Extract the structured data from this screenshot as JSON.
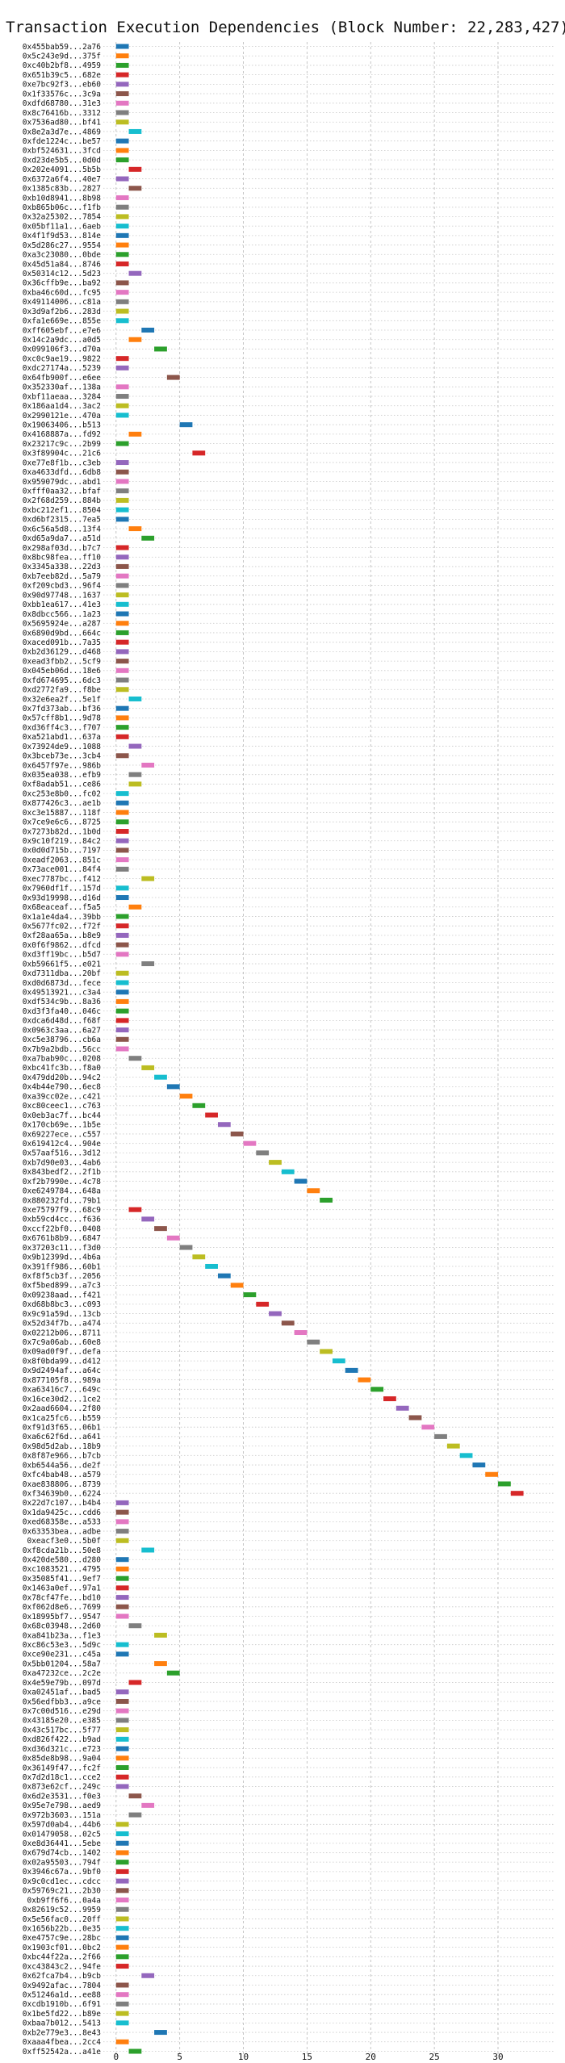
{
  "chart_data": {
    "type": "bar",
    "orientation": "horizontal",
    "title": "Transaction Execution Dependencies (Block Number: 22,283,427)",
    "xlabel": "",
    "ylabel": "",
    "xlim": [
      -1,
      34.5
    ],
    "xticks": [
      0,
      5,
      10,
      15,
      20,
      25,
      30
    ],
    "grid": true,
    "legend": "none",
    "palette": [
      "#1f77b4",
      "#ff7f0e",
      "#2ca02c",
      "#d62728",
      "#9467bd",
      "#8c564b",
      "#e377c2",
      "#7f7f7f",
      "#bcbd22",
      "#17becf"
    ],
    "transactions": [
      {
        "label": "0x455bab59...2a76",
        "x": 0
      },
      {
        "label": "0x5c243e9d...375f",
        "x": 0
      },
      {
        "label": "0xc40b2bf8...4959",
        "x": 0
      },
      {
        "label": "0x651b39c5...682e",
        "x": 0
      },
      {
        "label": "0xe7bc92f3...eb60",
        "x": 0
      },
      {
        "label": "0x1f33576c...3c9a",
        "x": 0
      },
      {
        "label": "0xdfd68780...31e3",
        "x": 0
      },
      {
        "label": "0x8c76416b...3312",
        "x": 0
      },
      {
        "label": "0x7536ad80...bf41",
        "x": 0
      },
      {
        "label": "0x8e2a3d7e...4869",
        "x": 1
      },
      {
        "label": "0xfde1224c...be57",
        "x": 0
      },
      {
        "label": "0xbf524631...3fcd",
        "x": 0
      },
      {
        "label": "0xd23de5b5...0d0d",
        "x": 0
      },
      {
        "label": "0x202e4091...5b5b",
        "x": 1
      },
      {
        "label": "0x6372a6f4...40e7",
        "x": 0
      },
      {
        "label": "0x1385c83b...2827",
        "x": 1
      },
      {
        "label": "0xb10d8941...8b98",
        "x": 0
      },
      {
        "label": "0xb865b06c...f1fb",
        "x": 0
      },
      {
        "label": "0x32a25302...7854",
        "x": 0
      },
      {
        "label": "0x05bf11a1...6aeb",
        "x": 0
      },
      {
        "label": "0x4f1f9d53...814e",
        "x": 0
      },
      {
        "label": "0x5d286c27...9554",
        "x": 0
      },
      {
        "label": "0xa3c23080...0bde",
        "x": 0
      },
      {
        "label": "0x45d51a84...8746",
        "x": 0
      },
      {
        "label": "0x50314c12...5d23",
        "x": 1
      },
      {
        "label": "0x36cffb9e...ba92",
        "x": 0
      },
      {
        "label": "0xba46c60d...fc95",
        "x": 0
      },
      {
        "label": "0x49114006...c81a",
        "x": 0
      },
      {
        "label": "0x3d9af2b6...283d",
        "x": 0
      },
      {
        "label": "0xfa1e669e...855e",
        "x": 0
      },
      {
        "label": "0xff605ebf...e7e6",
        "x": 2
      },
      {
        "label": "0x14c2a9dc...a0d5",
        "x": 1
      },
      {
        "label": "0x099106f3...d70a",
        "x": 3
      },
      {
        "label": "0xc0c9ae19...9822",
        "x": 0
      },
      {
        "label": "0xdc27174a...5239",
        "x": 0
      },
      {
        "label": "0x64fb900f...e6ee",
        "x": 4
      },
      {
        "label": "0x352330af...138a",
        "x": 0
      },
      {
        "label": "0xbf11aeaa...3284",
        "x": 0
      },
      {
        "label": "0x186aa1d4...3ac2",
        "x": 0
      },
      {
        "label": "0x2990121e...470a",
        "x": 0
      },
      {
        "label": "0x19063406...b513",
        "x": 5
      },
      {
        "label": "0x4168887a...fd92",
        "x": 1
      },
      {
        "label": "0x23217c9c...2b99",
        "x": 0
      },
      {
        "label": "0x3f89904c...21c6",
        "x": 6
      },
      {
        "label": "0xe77e8f1b...c3eb",
        "x": 0
      },
      {
        "label": "0xa4633dfd...6db8",
        "x": 0
      },
      {
        "label": "0x959079dc...abd1",
        "x": 0
      },
      {
        "label": "0xfff0aa32...bfaf",
        "x": 0
      },
      {
        "label": "0x2f68d259...884b",
        "x": 0
      },
      {
        "label": "0xbc212ef1...8504",
        "x": 0
      },
      {
        "label": "0xd6bf2315...7ea5",
        "x": 0
      },
      {
        "label": "0x6c56a5d8...13f4",
        "x": 1
      },
      {
        "label": "0xd65a9da7...a51d",
        "x": 2
      },
      {
        "label": "0x298af03d...b7c7",
        "x": 0
      },
      {
        "label": "0x8bc98fea...ff10",
        "x": 0
      },
      {
        "label": "0x3345a338...22d3",
        "x": 0
      },
      {
        "label": "0xb7eeb82d...5a79",
        "x": 0
      },
      {
        "label": "0xf209cbd3...96f4",
        "x": 0
      },
      {
        "label": "0x90d97748...1637",
        "x": 0
      },
      {
        "label": "0xbb1ea617...41e3",
        "x": 0
      },
      {
        "label": "0x8dbcc566...1a23",
        "x": 0
      },
      {
        "label": "0x5695924e...a287",
        "x": 0
      },
      {
        "label": "0x6890d9bd...664c",
        "x": 0
      },
      {
        "label": "0xaced091b...7a35",
        "x": 0
      },
      {
        "label": "0xb2d36129...d468",
        "x": 0
      },
      {
        "label": "0xead3fbb2...5cf9",
        "x": 0
      },
      {
        "label": "0x045eb06d...18e6",
        "x": 0
      },
      {
        "label": "0xfd674695...6dc3",
        "x": 0
      },
      {
        "label": "0xd2772fa9...f8be",
        "x": 0
      },
      {
        "label": "0x32e6ea2f...5e1f",
        "x": 1
      },
      {
        "label": "0x7fd373ab...bf36",
        "x": 0
      },
      {
        "label": "0x57cff8b1...9d78",
        "x": 0
      },
      {
        "label": "0xd36ff4c3...f707",
        "x": 0
      },
      {
        "label": "0xa521abd1...637a",
        "x": 0
      },
      {
        "label": "0x73924de9...1088",
        "x": 1
      },
      {
        "label": "0x3bceb73e...3cb4",
        "x": 0
      },
      {
        "label": "0x6457f97e...986b",
        "x": 2
      },
      {
        "label": "0x035ea038...efb9",
        "x": 1
      },
      {
        "label": "0xf8adab51...ce86",
        "x": 1
      },
      {
        "label": "0xc253e8b0...fc02",
        "x": 0
      },
      {
        "label": "0x877426c3...ae1b",
        "x": 0
      },
      {
        "label": "0xc3e15887...118f",
        "x": 0
      },
      {
        "label": "0x7ce9e6c6...8725",
        "x": 0
      },
      {
        "label": "0x7273b82d...1b0d",
        "x": 0
      },
      {
        "label": "0x9c10f219...84c2",
        "x": 0
      },
      {
        "label": "0x0d0d715b...7197",
        "x": 0
      },
      {
        "label": "0xeadf2063...851c",
        "x": 0
      },
      {
        "label": "0x73ace001...84f4",
        "x": 0
      },
      {
        "label": "0xec7787bc...f412",
        "x": 2
      },
      {
        "label": "0x7960df1f...157d",
        "x": 0
      },
      {
        "label": "0x93d19998...d16d",
        "x": 0
      },
      {
        "label": "0x68eaceaf...f5a5",
        "x": 1
      },
      {
        "label": "0x1a1e4da4...39bb",
        "x": 0
      },
      {
        "label": "0x5677fc02...f72f",
        "x": 0
      },
      {
        "label": "0xf28aa65a...b8e9",
        "x": 0
      },
      {
        "label": "0x0f6f9862...dfcd",
        "x": 0
      },
      {
        "label": "0xd3ff19bc...b5d7",
        "x": 0
      },
      {
        "label": "0xb59661f5...e021",
        "x": 2
      },
      {
        "label": "0xd7311dba...20bf",
        "x": 0
      },
      {
        "label": "0xd0d6873d...fece",
        "x": 0
      },
      {
        "label": "0x49513921...c3a4",
        "x": 0
      },
      {
        "label": "0xdf534c9b...8a36",
        "x": 0
      },
      {
        "label": "0xd3f3fa40...046c",
        "x": 0
      },
      {
        "label": "0xdca6d48d...f68f",
        "x": 0
      },
      {
        "label": "0x0963c3aa...6a27",
        "x": 0
      },
      {
        "label": "0xc5e38796...cb6a",
        "x": 0
      },
      {
        "label": "0x7b9a2bdb...56cc",
        "x": 0
      },
      {
        "label": "0xa7bab90c...0208",
        "x": 1
      },
      {
        "label": "0xbc41fc3b...f8a0",
        "x": 2
      },
      {
        "label": "0x479dd20b...94c2",
        "x": 3
      },
      {
        "label": "0x4b44e790...6ec8",
        "x": 4
      },
      {
        "label": "0xa39cc02e...c421",
        "x": 5
      },
      {
        "label": "0xc80ceec1...c763",
        "x": 6
      },
      {
        "label": "0x0eb3ac7f...bc44",
        "x": 7
      },
      {
        "label": "0x170cb69e...1b5e",
        "x": 8
      },
      {
        "label": "0x69227ece...c557",
        "x": 9
      },
      {
        "label": "0x619412c4...904e",
        "x": 10
      },
      {
        "label": "0x57aaf516...3d12",
        "x": 11
      },
      {
        "label": "0xb7d90e03...4ab6",
        "x": 12
      },
      {
        "label": "0x843bedf2...2f1b",
        "x": 13
      },
      {
        "label": "0xf2b7990e...4c78",
        "x": 14
      },
      {
        "label": "0xe6249784...648a",
        "x": 15
      },
      {
        "label": "0x880232fd...79b1",
        "x": 16
      },
      {
        "label": "0xe75797f9...68c9",
        "x": 1
      },
      {
        "label": "0xb59cd4cc...f636",
        "x": 2
      },
      {
        "label": "0xccf22bf0...0408",
        "x": 3
      },
      {
        "label": "0x6761b8b9...6847",
        "x": 4
      },
      {
        "label": "0x37203c11...f3d0",
        "x": 5
      },
      {
        "label": "0x9b12399d...4b6a",
        "x": 6
      },
      {
        "label": "0x391ff986...60b1",
        "x": 7
      },
      {
        "label": "0xf8f5cb3f...2056",
        "x": 8
      },
      {
        "label": "0xf5bed899...a7c3",
        "x": 9
      },
      {
        "label": "0x09238aad...f421",
        "x": 10
      },
      {
        "label": "0xd68b8bc3...c093",
        "x": 11
      },
      {
        "label": "0x9c91a59d...13cb",
        "x": 12
      },
      {
        "label": "0x52d34f7b...a474",
        "x": 13
      },
      {
        "label": "0x02212b06...8711",
        "x": 14
      },
      {
        "label": "0x7c9a06ab...60e8",
        "x": 15
      },
      {
        "label": "0x09ad0f9f...defa",
        "x": 16
      },
      {
        "label": "0x8f0bda99...d412",
        "x": 17
      },
      {
        "label": "0x9d2494af...a64c",
        "x": 18
      },
      {
        "label": "0x877105f8...989a",
        "x": 19
      },
      {
        "label": "0xa63416c7...649c",
        "x": 20
      },
      {
        "label": "0x16ce30d2...1ce2",
        "x": 21
      },
      {
        "label": "0x2aad6604...2f80",
        "x": 22
      },
      {
        "label": "0x1ca25fc6...b559",
        "x": 23
      },
      {
        "label": "0xf91d3f65...06b1",
        "x": 24
      },
      {
        "label": "0xa6c62f6d...a641",
        "x": 25
      },
      {
        "label": "0x98d5d2ab...18b9",
        "x": 26
      },
      {
        "label": "0x8f87e966...b7cb",
        "x": 27
      },
      {
        "label": "0xb6544a56...de2f",
        "x": 28
      },
      {
        "label": "0xfc4bab48...a579",
        "x": 29
      },
      {
        "label": "0xae838806...8739",
        "x": 30
      },
      {
        "label": "0xf34639b0...6224",
        "x": 31
      },
      {
        "label": "0x22d7c107...b4b4",
        "x": 0
      },
      {
        "label": "0x1da9425c...cdd6",
        "x": 0
      },
      {
        "label": "0xed68358e...a533",
        "x": 0
      },
      {
        "label": "0x63353bea...adbe",
        "x": 0
      },
      {
        "label": "0xeacf3e0...5b0f",
        "x": 0
      },
      {
        "label": "0xf8cda21b...50e8",
        "x": 2
      },
      {
        "label": "0x420de580...d280",
        "x": 0
      },
      {
        "label": "0xc1083521...4795",
        "x": 0
      },
      {
        "label": "0x35085f41...9ef7",
        "x": 0
      },
      {
        "label": "0x1463a0ef...97a1",
        "x": 0
      },
      {
        "label": "0x78cf47fe...bd10",
        "x": 0
      },
      {
        "label": "0xf062d8e6...7699",
        "x": 0
      },
      {
        "label": "0x18995bf7...9547",
        "x": 0
      },
      {
        "label": "0x68c03948...2d60",
        "x": 1
      },
      {
        "label": "0xa841b23a...f1e3",
        "x": 3
      },
      {
        "label": "0xc86c53e3...5d9c",
        "x": 0
      },
      {
        "label": "0xce90e231...c45a",
        "x": 0
      },
      {
        "label": "0x5bb01204...58a7",
        "x": 3
      },
      {
        "label": "0xa47232ce...2c2e",
        "x": 4
      },
      {
        "label": "0x4e59e79b...097d",
        "x": 1
      },
      {
        "label": "0xa02451af...bad5",
        "x": 0
      },
      {
        "label": "0x56edfbb3...a9ce",
        "x": 0
      },
      {
        "label": "0x7c00d516...e29d",
        "x": 0
      },
      {
        "label": "0x43185e20...e385",
        "x": 0
      },
      {
        "label": "0x43c517bc...5f77",
        "x": 0
      },
      {
        "label": "0xd826f422...b9ad",
        "x": 0
      },
      {
        "label": "0xd36d321c...e723",
        "x": 0
      },
      {
        "label": "0x85de8b98...9a04",
        "x": 0
      },
      {
        "label": "0x36149f47...fc2f",
        "x": 0
      },
      {
        "label": "0x7d2d18c1...cce2",
        "x": 0
      },
      {
        "label": "0x873e62cf...249c",
        "x": 0
      },
      {
        "label": "0x6d2e3531...f0e3",
        "x": 1
      },
      {
        "label": "0x95e7e798...aed9",
        "x": 2
      },
      {
        "label": "0x972b3603...151a",
        "x": 1
      },
      {
        "label": "0x597d0ab4...44b6",
        "x": 0
      },
      {
        "label": "0x01479058...02c5",
        "x": 0
      },
      {
        "label": "0xe8d36441...5ebe",
        "x": 0
      },
      {
        "label": "0x679d74cb...1402",
        "x": 0
      },
      {
        "label": "0x02a95503...794f",
        "x": 0
      },
      {
        "label": "0x3946c67a...9bf0",
        "x": 0
      },
      {
        "label": "0x9c0cd1ec...cdcc",
        "x": 0
      },
      {
        "label": "0x59769c21...2b30",
        "x": 0
      },
      {
        "label": "0xb9ff6f6...0a4a",
        "x": 0
      },
      {
        "label": "0x82619c52...9959",
        "x": 0
      },
      {
        "label": "0x5e56fac0...20ff",
        "x": 0
      },
      {
        "label": "0x1656b22b...0e35",
        "x": 0
      },
      {
        "label": "0xe4757c9e...28bc",
        "x": 0
      },
      {
        "label": "0x1903cf01...0bc2",
        "x": 0
      },
      {
        "label": "0xbc44f22a...2f66",
        "x": 0
      },
      {
        "label": "0xc43843c2...94fe",
        "x": 0
      },
      {
        "label": "0x62fca7b4...b9cb",
        "x": 2
      },
      {
        "label": "0x9492afac...7804",
        "x": 0
      },
      {
        "label": "0x51246a1d...ee88",
        "x": 0
      },
      {
        "label": "0xcdb1910b...6f91",
        "x": 0
      },
      {
        "label": "0x1be5fd22...b89e",
        "x": 0
      },
      {
        "label": "0xbaa7b012...5413",
        "x": 0
      },
      {
        "label": "0xb2e779e3...8e43",
        "x": 3
      },
      {
        "label": "0xaaa4fbea...2cc4",
        "x": 0
      },
      {
        "label": "0xff52542a...a41e",
        "x": 1
      }
    ]
  }
}
